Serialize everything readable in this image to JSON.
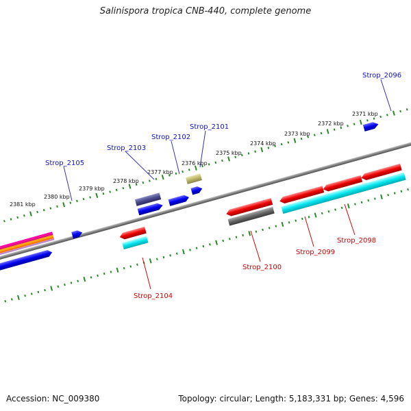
{
  "title": "Salinispora tropica CNB-440, complete genome",
  "footer": {
    "accession": "Accession: NC_009380",
    "summary": "Topology: circular; Length: 5,183,331 bp; Genes: 4,596"
  },
  "scale_labels": [
    "2371 kbp",
    "2372 kbp",
    "2373 kbp",
    "2374 kbp",
    "2375 kbp",
    "2376 kbp",
    "2377 kbp",
    "2378 kbp",
    "2379 kbp",
    "2380 kbp",
    "2381 kbp"
  ],
  "gene_labels": {
    "top": [
      "Strop_2096",
      "Strop_2101",
      "Strop_2102",
      "Strop_2103",
      "Strop_2105"
    ],
    "bottom": [
      "Strop_2098",
      "Strop_2099",
      "Strop_2100",
      "Strop_2104"
    ]
  },
  "colors": {
    "backbone": "#808080",
    "scale_ticks": "#228b22",
    "gene_forward": "#0000ee",
    "gene_reverse": "#ee0000",
    "feature_cyan": "#00e5ee",
    "feature_gray": "#666666",
    "feature_slate": "#4b4b8c",
    "feature_khaki": "#bdb76b",
    "label_top": "#1010c0",
    "label_bottom": "#cc0000"
  }
}
